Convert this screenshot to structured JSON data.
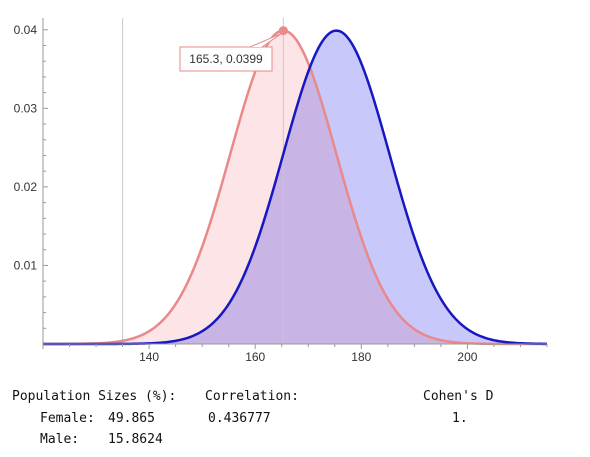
{
  "chart_data": {
    "type": "area",
    "xlim": [
      120,
      215
    ],
    "ylim": [
      0,
      0.0415
    ],
    "x_ticks": [
      140,
      160,
      180,
      200
    ],
    "x_tick_labels": [
      "140",
      "160",
      "180",
      "200"
    ],
    "y_ticks": [
      0.01,
      0.02,
      0.03,
      0.04
    ],
    "y_tick_labels": [
      "0.01",
      "0.02",
      "0.03",
      "0.04"
    ],
    "grid": false,
    "vertical_reference_lines": [
      135,
      165.3
    ],
    "series": [
      {
        "distribution": "normal",
        "mean": 165.3,
        "sd": 10,
        "peak": 0.0399,
        "line_color": "#e8898a",
        "fill_color": "#fde4e6"
      },
      {
        "distribution": "normal",
        "mean": 175.3,
        "sd": 10,
        "peak": 0.0399,
        "line_color": "#1818c0",
        "fill_color": "#c8c8fa"
      }
    ],
    "overlap_fill_color": "#c9b4e6",
    "highlight_point": {
      "x": 165.3,
      "y": 0.0399,
      "label": "165.3, 0.0399",
      "color": "#e8898a"
    }
  },
  "stats": {
    "population_header": "Population Sizes (%):",
    "correlation_header": "Correlation:",
    "cohens_header": "Cohen's D",
    "female_label": "Female:",
    "female_value": "49.865",
    "male_label": "Male:",
    "male_value": "15.8624",
    "correlation_value": "0.436777",
    "cohens_value": "1."
  }
}
